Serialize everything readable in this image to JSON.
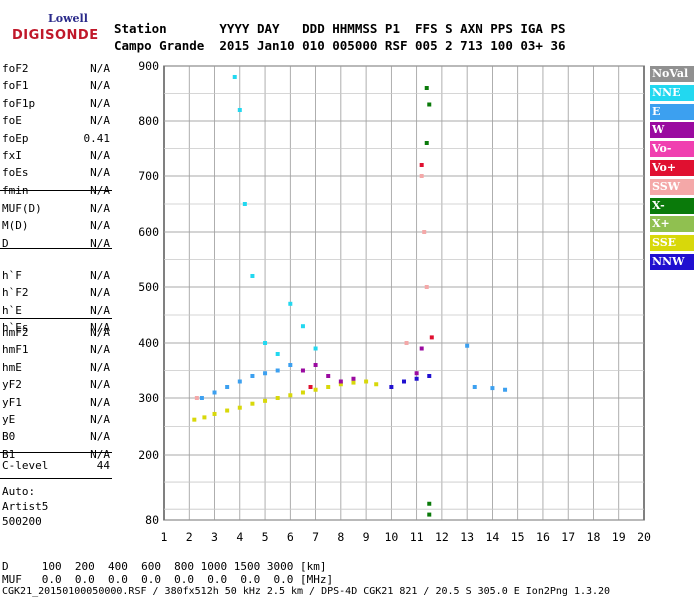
{
  "logo": {
    "top": "Lowell",
    "main": "DIGISONDE"
  },
  "header": {
    "row1": "Station       YYYY DAY   DDD HHMMSS P1  FFS S AXN PPS IGA PS",
    "row2": "Campo Grande  2015 Jan10 010 005000 RSF 005 2 713 100 03+ 36"
  },
  "params_group1": [
    {
      "k": "foF2",
      "v": "N/A"
    },
    {
      "k": "foF1",
      "v": "N/A"
    },
    {
      "k": "foF1p",
      "v": "N/A"
    },
    {
      "k": "foE",
      "v": "N/A"
    },
    {
      "k": "foEp",
      "v": "0.41"
    },
    {
      "k": "fxI",
      "v": "N/A"
    },
    {
      "k": "foEs",
      "v": "N/A"
    },
    {
      "k": "fmin",
      "v": "N/A"
    }
  ],
  "params_group2": [
    {
      "k": "MUF(D)",
      "v": "N/A"
    },
    {
      "k": "M(D)",
      "v": "N/A"
    },
    {
      "k": "D",
      "v": "N/A"
    }
  ],
  "params_group3": [
    {
      "k": "h`F",
      "v": "N/A"
    },
    {
      "k": "h`F2",
      "v": "N/A"
    },
    {
      "k": "h`E",
      "v": "N/A"
    },
    {
      "k": "h`Es",
      "v": "N/A"
    }
  ],
  "params_group4": [
    {
      "k": "hmF2",
      "v": "N/A"
    },
    {
      "k": "hmF1",
      "v": "N/A"
    },
    {
      "k": "hmE",
      "v": "N/A"
    },
    {
      "k": "yF2",
      "v": "N/A"
    },
    {
      "k": "yF1",
      "v": "N/A"
    },
    {
      "k": "yE",
      "v": "N/A"
    },
    {
      "k": "B0",
      "v": "N/A"
    },
    {
      "k": "B1",
      "v": "N/A"
    }
  ],
  "clevel": {
    "k": "C-level",
    "v": "44"
  },
  "auto": {
    "line1": "Auto:",
    "line2": "Artist5",
    "line3": "500200"
  },
  "legend": [
    {
      "label": "NoVal",
      "color": "#909090"
    },
    {
      "label": "NNE",
      "color": "#22d8f0"
    },
    {
      "label": "E",
      "color": "#3ca0f0"
    },
    {
      "label": "W",
      "color": "#9a0aa0"
    },
    {
      "label": "Vo-",
      "color": "#f040b0"
    },
    {
      "label": "Vo+",
      "color": "#e01030"
    },
    {
      "label": "SSW",
      "color": "#f4a8a8"
    },
    {
      "label": "X-",
      "color": "#0a7a0a"
    },
    {
      "label": "X+",
      "color": "#90c050"
    },
    {
      "label": "SSE",
      "color": "#d8d80a"
    },
    {
      "label": "NNW",
      "color": "#2010d0"
    }
  ],
  "bottom": {
    "d_line": "D     100  200  400  600  800 1000 1500 3000 [km]",
    "muf_line": "MUF   0.0  0.0  0.0  0.0  0.0  0.0  0.0  0.0 [MHz]",
    "footer": "CGK21_20150100050000.RSF / 380fx512h 50 kHz 2.5 km / DPS-4D CGK21 821 / 20.5 S 305.0 E Ion2Png 1.3.20"
  },
  "chart_data": {
    "type": "scatter",
    "xlabel": "",
    "ylabel": "",
    "xlim": [
      1,
      20
    ],
    "ylim": [
      80,
      900
    ],
    "x_ticks": [
      1,
      2,
      3,
      4,
      5,
      6,
      7,
      8,
      9,
      10,
      11,
      12,
      13,
      14,
      15,
      16,
      17,
      18,
      19,
      20
    ],
    "y_ticks": [
      80,
      200,
      300,
      400,
      500,
      600,
      700,
      800,
      900
    ],
    "grid": true,
    "legend_position": "right",
    "series": [
      {
        "name": "SSE",
        "color": "#d8d80a",
        "points": [
          [
            2.2,
            262
          ],
          [
            2.6,
            266
          ],
          [
            3,
            272
          ],
          [
            3.5,
            278
          ],
          [
            4,
            283
          ],
          [
            4.5,
            290
          ],
          [
            5,
            295
          ],
          [
            5.5,
            300
          ],
          [
            6,
            305
          ],
          [
            6.5,
            310
          ],
          [
            7,
            315
          ],
          [
            7.5,
            320
          ],
          [
            8,
            325
          ],
          [
            8.5,
            328
          ],
          [
            9,
            330
          ],
          [
            9.4,
            325
          ]
        ]
      },
      {
        "name": "E",
        "color": "#3ca0f0",
        "points": [
          [
            2.5,
            300
          ],
          [
            3,
            310
          ],
          [
            3.5,
            320
          ],
          [
            4,
            330
          ],
          [
            4.5,
            340
          ],
          [
            5,
            345
          ],
          [
            5.5,
            350
          ],
          [
            6,
            360
          ],
          [
            13,
            395
          ],
          [
            13.3,
            320
          ],
          [
            14,
            318
          ],
          [
            14.5,
            315
          ]
        ]
      },
      {
        "name": "NNE",
        "color": "#22d8f0",
        "points": [
          [
            3.8,
            880
          ],
          [
            4,
            820
          ],
          [
            4.2,
            650
          ],
          [
            4.5,
            520
          ],
          [
            5,
            400
          ],
          [
            5.5,
            380
          ],
          [
            6,
            470
          ],
          [
            6.5,
            430
          ],
          [
            7,
            390
          ]
        ]
      },
      {
        "name": "NNW",
        "color": "#2010d0",
        "points": [
          [
            10,
            320
          ],
          [
            10.5,
            330
          ],
          [
            11,
            335
          ],
          [
            11.5,
            340
          ]
        ]
      },
      {
        "name": "W",
        "color": "#9a0aa0",
        "points": [
          [
            6.5,
            350
          ],
          [
            7,
            360
          ],
          [
            7.5,
            340
          ],
          [
            8,
            330
          ],
          [
            8.5,
            335
          ],
          [
            11,
            345
          ],
          [
            11.2,
            390
          ]
        ]
      },
      {
        "name": "X-",
        "color": "#0a7a0a",
        "points": [
          [
            11.4,
            860
          ],
          [
            11.5,
            830
          ],
          [
            11.4,
            760
          ],
          [
            11.5,
            110
          ],
          [
            11.5,
            90
          ]
        ]
      },
      {
        "name": "SSW",
        "color": "#f4a8a8",
        "points": [
          [
            11.2,
            700
          ],
          [
            11.3,
            600
          ],
          [
            11.4,
            500
          ],
          [
            10.6,
            400
          ],
          [
            2.3,
            300
          ]
        ]
      },
      {
        "name": "Vo+",
        "color": "#e01030",
        "points": [
          [
            11.6,
            410
          ],
          [
            11.2,
            720
          ],
          [
            6.8,
            320
          ]
        ]
      }
    ]
  }
}
